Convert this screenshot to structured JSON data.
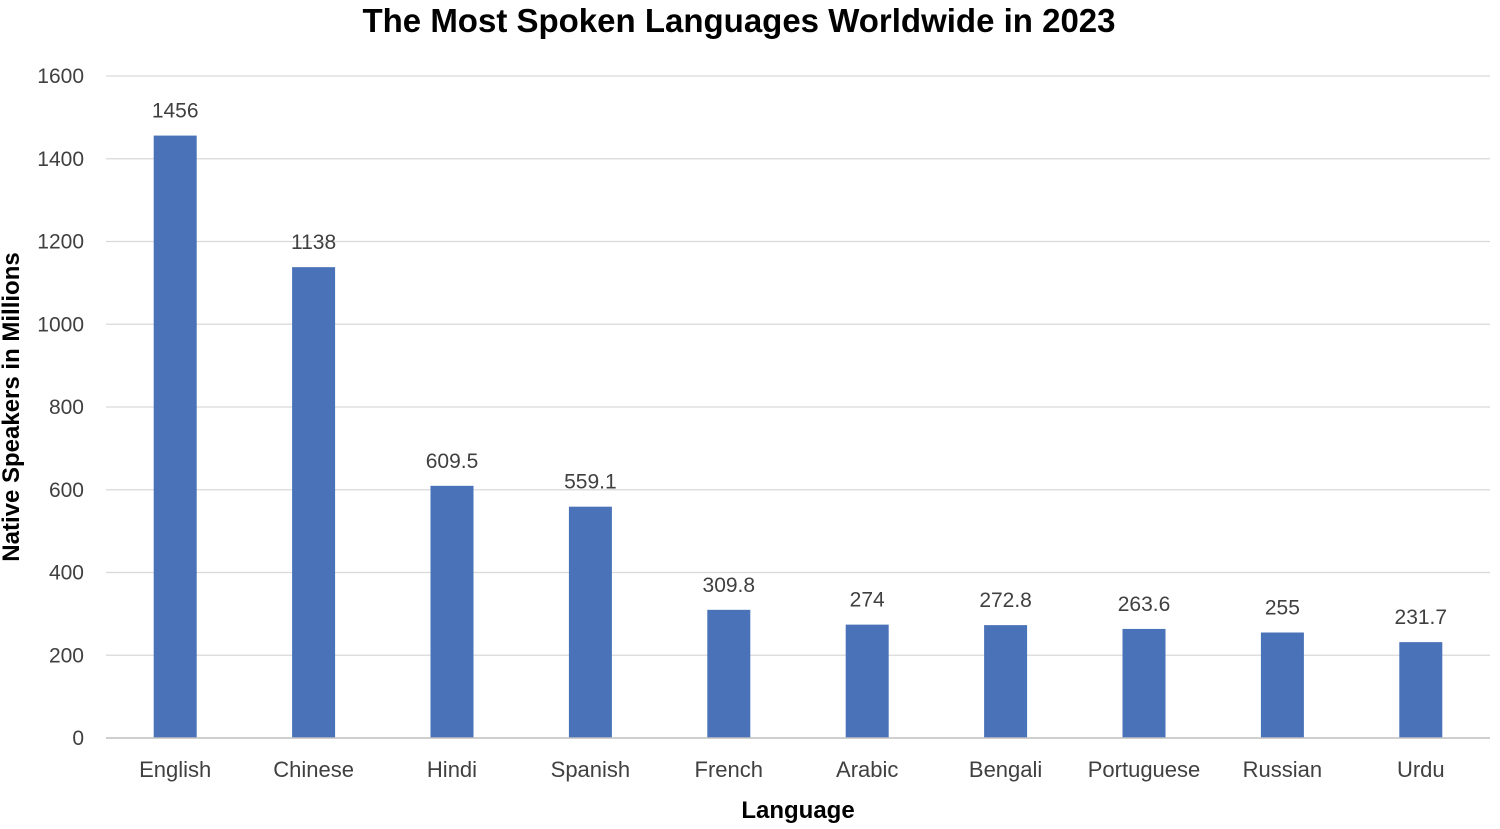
{
  "chart_data": {
    "type": "bar",
    "title": "The Most Spoken Languages Worldwide in 2023",
    "xlabel": "Language",
    "ylabel": "Native Speakers in Millions",
    "categories": [
      "English",
      "Chinese",
      "Hindi",
      "Spanish",
      "French",
      "Arabic",
      "Bengali",
      "Portuguese",
      "Russian",
      "Urdu"
    ],
    "values": [
      1456,
      1138,
      609.5,
      559.1,
      309.8,
      274,
      272.8,
      263.6,
      255,
      231.7
    ],
    "data_labels": [
      "1456",
      "1138",
      "609.5",
      "559.1",
      "309.8",
      "274",
      "272.8",
      "263.6",
      "255",
      "231.7"
    ],
    "ylim": [
      0,
      1600
    ],
    "yticks": [
      0,
      200,
      400,
      600,
      800,
      1000,
      1200,
      1400,
      1600
    ],
    "grid": true,
    "bar_color": "#4a72b8"
  }
}
